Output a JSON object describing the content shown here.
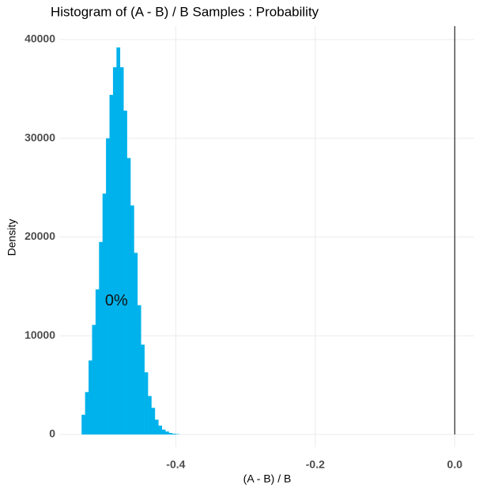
{
  "chart_data": {
    "type": "histogram",
    "title": "Histogram of (A - B) / B Samples : Probability",
    "xlabel": "(A - B) / B",
    "ylabel": "Density",
    "bins": [
      -0.535,
      -0.53,
      -0.525,
      -0.52,
      -0.515,
      -0.51,
      -0.505,
      -0.5,
      -0.495,
      -0.49,
      -0.485,
      -0.48,
      -0.475,
      -0.47,
      -0.465,
      -0.46,
      -0.455,
      -0.45,
      -0.445,
      -0.44,
      -0.435,
      -0.43,
      -0.425,
      -0.42,
      -0.415,
      -0.41,
      -0.405,
      -0.4,
      -0.395
    ],
    "values": [
      2000,
      4300,
      7500,
      11100,
      14700,
      19500,
      24400,
      30000,
      34400,
      37200,
      39200,
      37200,
      32800,
      28000,
      23200,
      18400,
      13100,
      9100,
      6300,
      3900,
      2700,
      1500,
      900,
      500,
      300,
      150,
      80,
      40
    ],
    "color": "#00b2eb",
    "xlim": [
      -0.567,
      0.028
    ],
    "ylim": [
      -1280,
      41360
    ],
    "xticks": [
      -0.4,
      -0.2,
      {
        "value": 0,
        "label": "0.0"
      }
    ],
    "yticks": [
      0,
      10000,
      20000,
      30000,
      40000
    ],
    "grid": true,
    "vline": 0,
    "annotation": {
      "text": "0%",
      "x": -0.485,
      "y": 13500
    }
  }
}
